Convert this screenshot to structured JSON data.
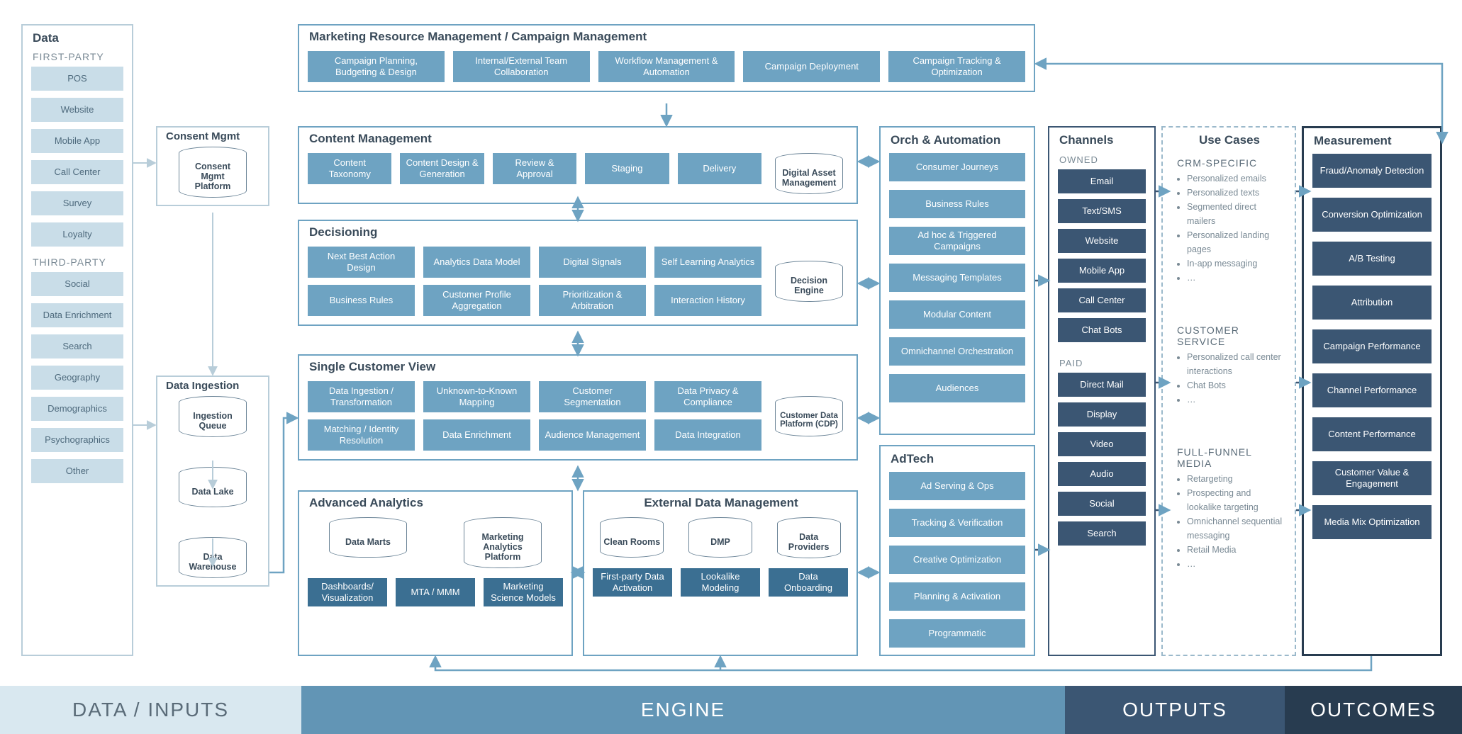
{
  "colors": {
    "blue_lightest": "#d9e8f0",
    "blue_light": "#a6c8da",
    "blue_mid": "#6ea3c2",
    "blue_dark": "#3f7a9e",
    "blue_darker": "#2c6186",
    "navy": "#3b5673",
    "ink": "#4a5a68"
  },
  "footer": {
    "data": "DATA / INPUTS",
    "engine": "ENGINE",
    "outputs": "OUTPUTS",
    "outcomes": "OUTCOMES"
  },
  "data_panel": {
    "title": "Data",
    "sub1": "FIRST-PARTY",
    "first_party": [
      "POS",
      "Website",
      "Mobile App",
      "Call Center",
      "Survey",
      "Loyalty"
    ],
    "sub2": "THIRD-PARTY",
    "third_party": [
      "Social",
      "Data Enrichment",
      "Search",
      "Geography",
      "Demographics",
      "Psychographics",
      "Other"
    ]
  },
  "consent": {
    "title": "Consent Mgmt",
    "cyl": "Consent Mgmt Platform"
  },
  "ingest": {
    "title": "Data Ingestion",
    "cyl1": "Ingestion Queue",
    "cyl2": "Data Lake",
    "cyl3": "Data Warehouse"
  },
  "mrm": {
    "title": "Marketing Resource Management / Campaign Management",
    "items": [
      "Campaign Planning, Budgeting & Design",
      "Internal/External Team Collaboration",
      "Workflow Management & Automation",
      "Campaign Deployment",
      "Campaign Tracking & Optimization"
    ]
  },
  "content": {
    "title": "Content Management",
    "items": [
      "Content Taxonomy",
      "Content Design & Generation",
      "Review & Approval",
      "Staging",
      "Delivery"
    ],
    "cyl": "Digital Asset Management"
  },
  "decision": {
    "title": "Decisioning",
    "row1": [
      "Next Best Action Design",
      "Analytics Data Model",
      "Digital Signals",
      "Self Learning Analytics"
    ],
    "row2": [
      "Business Rules",
      "Customer Profile Aggregation",
      "Prioritization & Arbitration",
      "Interaction History"
    ],
    "cyl": "Decision Engine"
  },
  "scv": {
    "title": "Single Customer View",
    "row1": [
      "Data Ingestion / Transformation",
      "Unknown-to-Known Mapping",
      "Customer Segmentation",
      "Data Privacy & Compliance"
    ],
    "row2": [
      "Matching / Identity Resolution",
      "Data Enrichment",
      "Audience Management",
      "Data Integration"
    ],
    "cyl": "Customer Data Platform (CDP)"
  },
  "analytics": {
    "title": "Advanced Analytics",
    "cyl1": "Data Marts",
    "cyl2": "Marketing Analytics Platform",
    "row": [
      "Dashboards/ Visualization",
      "MTA / MMM",
      "Marketing Science Models"
    ]
  },
  "edm": {
    "title": "External Data Management",
    "cyl1": "Clean Rooms",
    "cyl2": "DMP",
    "cyl3": "Data Providers",
    "row": [
      "First-party Data Activation",
      "Lookalike Modeling",
      "Data Onboarding"
    ]
  },
  "orch": {
    "title": "Orch & Automation",
    "items": [
      "Consumer Journeys",
      "Business Rules",
      "Ad hoc & Triggered Campaigns",
      "Messaging Templates",
      "Modular Content",
      "Omnichannel Orchestration",
      "Audiences"
    ]
  },
  "adtech": {
    "title": "AdTech",
    "items": [
      "Ad Serving & Ops",
      "Tracking & Verification",
      "Creative Optimization",
      "Planning & Activation",
      "Programmatic"
    ]
  },
  "channels": {
    "title": "Channels",
    "owned_label": "OWNED",
    "owned": [
      "Email",
      "Text/SMS",
      "Website",
      "Mobile App",
      "Call Center",
      "Chat Bots"
    ],
    "paid_label": "PAID",
    "paid": [
      "Direct Mail",
      "Display",
      "Video",
      "Audio",
      "Social",
      "Search"
    ]
  },
  "usecases": {
    "title": "Use Cases",
    "h1": "CRM-SPECIFIC",
    "l1": [
      "Personalized emails",
      "Personalized texts",
      "Segmented direct mailers",
      "Personalized landing pages",
      "In-app messaging",
      "…"
    ],
    "h2": "CUSTOMER SERVICE",
    "l2": [
      "Personalized call center interactions",
      "Chat Bots",
      "…"
    ],
    "h3": "FULL-FUNNEL MEDIA",
    "l3": [
      "Retargeting",
      "Prospecting and lookalike targeting",
      "Omnichannel sequential messaging",
      "Retail Media",
      "…"
    ]
  },
  "measure": {
    "title": "Measurement",
    "items": [
      "Fraud/Anomaly Detection",
      "Conversion Optimization",
      "A/B Testing",
      "Attribution",
      "Campaign Performance",
      "Channel Performance",
      "Content Performance",
      "Customer Value & Engagement",
      "Media Mix Optimization"
    ]
  }
}
